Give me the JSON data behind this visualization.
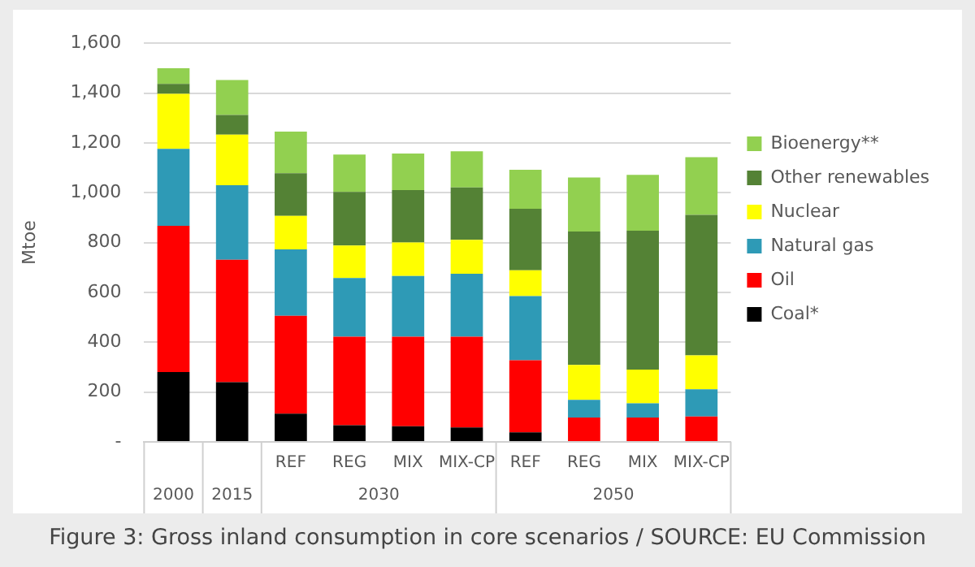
{
  "chart_data": {
    "type": "bar",
    "stacked": true,
    "ylabel": "Mtoe",
    "categories": [
      null,
      null,
      "REF",
      "REG",
      "MIX",
      "MIX-CP",
      "REF",
      "REG",
      "MIX",
      "MIX-CP"
    ],
    "series": [
      {
        "name": "Coal*",
        "color": "#000000",
        "values": [
          280,
          240,
          113,
          67,
          63,
          58,
          38,
          0,
          0,
          0
        ]
      },
      {
        "name": "Oil",
        "color": "#ff0000",
        "values": [
          587,
          491,
          393,
          355,
          359,
          364,
          290,
          98,
          98,
          102
        ]
      },
      {
        "name": "Natural gas",
        "color": "#2e9ab6",
        "values": [
          309,
          299,
          267,
          236,
          244,
          253,
          257,
          71,
          57,
          109
        ]
      },
      {
        "name": "Nuclear",
        "color": "#ffff00",
        "values": [
          221,
          203,
          134,
          130,
          134,
          136,
          104,
          140,
          135,
          136
        ]
      },
      {
        "name": "Other renewables",
        "color": "#548235",
        "values": [
          40,
          79,
          171,
          215,
          211,
          210,
          247,
          535,
          558,
          564
        ]
      },
      {
        "name": "Bioenergy**",
        "color": "#92d050",
        "values": [
          63,
          140,
          167,
          150,
          146,
          145,
          156,
          217,
          224,
          232
        ]
      }
    ],
    "ylim": [
      0,
      1600
    ],
    "yticks": [
      {
        "value": 0,
        "label": "-"
      },
      200,
      400,
      600,
      800,
      {
        "value": 1000,
        "label": "1,000"
      },
      {
        "value": 1200,
        "label": "1,200"
      },
      {
        "value": 1400,
        "label": "1,400"
      },
      {
        "value": 1600,
        "label": "1,600"
      }
    ],
    "grid": "y",
    "legend": "right",
    "annotations": [
      "2000",
      "2015",
      "2030",
      "2050",
      "Figure 3: Gross inland consumption in core scenarios / SOURCE: EU Commission"
    ]
  }
}
